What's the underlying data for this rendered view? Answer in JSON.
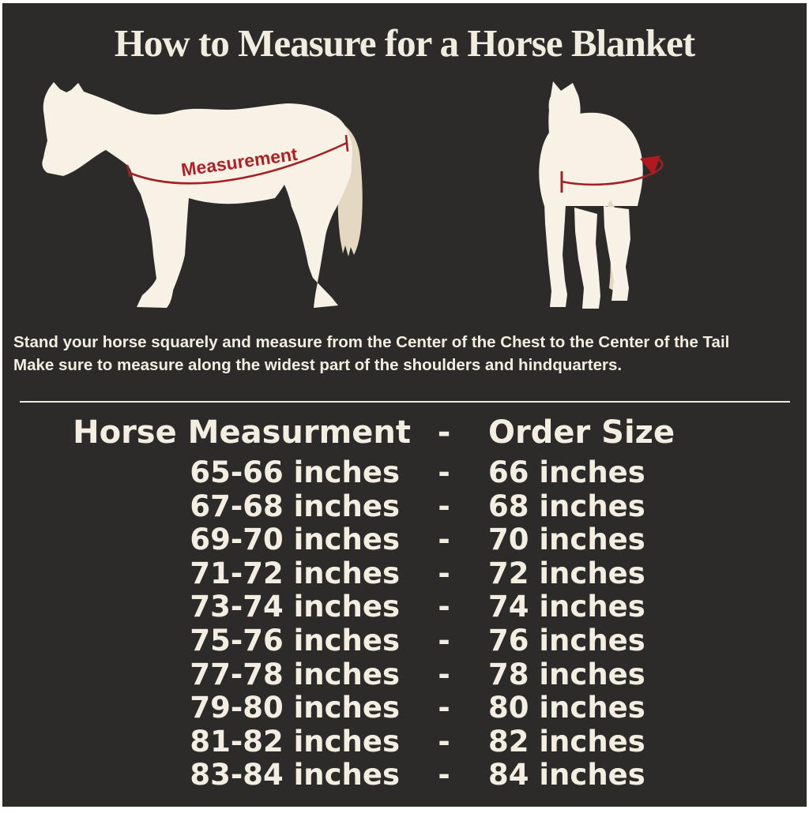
{
  "title": "How to Measure for a Horse Blanket",
  "diagram": {
    "measurement_label": "Measurement",
    "side_horse": "horse side view with measurement line from chest to tail",
    "front_horse": "horse front view with measurement arrow wrapping around body"
  },
  "instructions": {
    "line1": "Stand your horse squarely and measure from the Center of the Chest to the Center of the Tail",
    "line2": "Make sure to measure along the widest part of the shoulders and hindquarters."
  },
  "size_chart": {
    "header": {
      "measurement": "Horse Measurment",
      "separator": "-",
      "order_size": "Order Size"
    },
    "separator": "-",
    "rows": [
      {
        "measurement": "65-66 inches",
        "order_size": "66 inches"
      },
      {
        "measurement": "67-68 inches",
        "order_size": "68 inches"
      },
      {
        "measurement": "69-70 inches",
        "order_size": "70 inches"
      },
      {
        "measurement": "71-72 inches",
        "order_size": "72 inches"
      },
      {
        "measurement": "73-74 inches",
        "order_size": "74 inches"
      },
      {
        "measurement": "75-76 inches",
        "order_size": "76 inches"
      },
      {
        "measurement": "77-78 inches",
        "order_size": "78 inches"
      },
      {
        "measurement": "79-80 inches",
        "order_size": "80 inches"
      },
      {
        "measurement": "81-82 inches",
        "order_size": "82 inches"
      },
      {
        "measurement": "83-84 inches",
        "order_size": "84 inches"
      }
    ]
  },
  "colors": {
    "panel_background": "#2d2b29",
    "border": "#ffffff",
    "text_cream": "#f3eee1",
    "horse_body": "#f7f2e5",
    "horse_tail": "#e5d8c2",
    "accent_red": "#a32025",
    "label_red": "#b11f24"
  }
}
